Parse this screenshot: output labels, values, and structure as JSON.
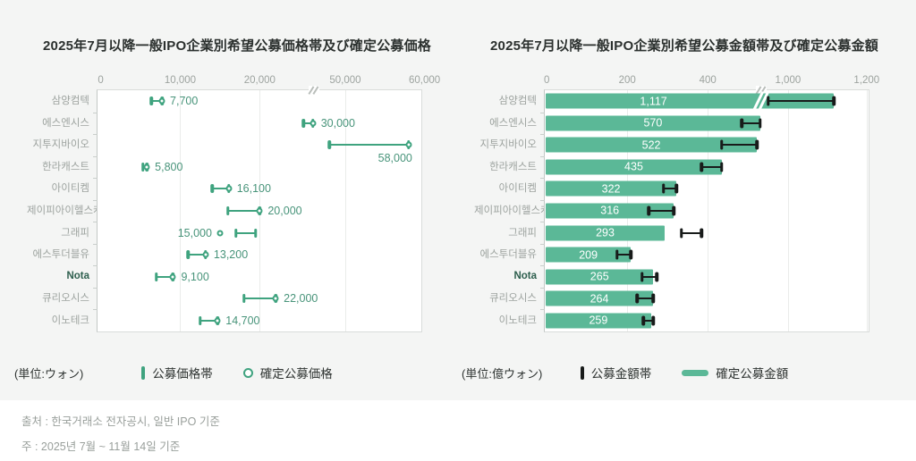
{
  "footer": {
    "source": "출처 : 한국거래소 전자공시, 일반 IPO 기준",
    "note": "주 : 2025년 7월 ~ 11월 14일 기준"
  },
  "colors": {
    "teal_bar": "#5bb897",
    "teal_marker": "#3fa37f",
    "value_label_teal": "#48947a",
    "band_black": "#181b1a",
    "highlight_dark_green": "#2e5f4e",
    "label_gray": "#9da39f"
  },
  "chart_data": [
    {
      "type": "range-dot",
      "title": "2025年7月以降一般IPO企業別希望公募価格帯及び確定公募価格",
      "unit": "(単位:ウォン)",
      "legend": [
        {
          "label": "公募価格帯",
          "icon": "teal-vertical-bar-icon"
        },
        {
          "label": "確定公募価格",
          "icon": "open-circle-icon"
        }
      ],
      "xlabel": "",
      "ylabel": "",
      "axis_break": true,
      "axis_break_between": [
        20000,
        50000
      ],
      "ticks": [
        {
          "v": 0,
          "label": "0"
        },
        {
          "v": 10000,
          "label": "10,000"
        },
        {
          "v": 20000,
          "label": "20,000"
        },
        {
          "v": 50000,
          "label": "50,000"
        },
        {
          "v": 60000,
          "label": "60,000"
        }
      ],
      "rows": [
        {
          "name": "삼양컴텍",
          "band": [
            6400,
            7700
          ],
          "confirmed": 7700,
          "label": "7,700",
          "label_pos": "right",
          "bold": false
        },
        {
          "name": "에스엔시스",
          "band": [
            25500,
            30000
          ],
          "confirmed": 30000,
          "label": "30,000",
          "label_pos": "right",
          "bold": false
        },
        {
          "name": "지투지바이오",
          "band": [
            48000,
            58000
          ],
          "confirmed": 58000,
          "label": "58,000",
          "label_pos": "below",
          "bold": false
        },
        {
          "name": "한라캐스트",
          "band": [
            5300,
            5800
          ],
          "confirmed": 5800,
          "label": "5,800",
          "label_pos": "right",
          "bold": false
        },
        {
          "name": "아이티켐",
          "band": [
            14000,
            16100
          ],
          "confirmed": 16100,
          "label": "16,100",
          "label_pos": "right",
          "bold": false
        },
        {
          "name": "제이피아이헬스케어",
          "band": [
            16000,
            20000
          ],
          "confirmed": 20000,
          "label": "20,000",
          "label_pos": "right",
          "bold": false
        },
        {
          "name": "그래피",
          "band": [
            17000,
            19500
          ],
          "confirmed": 15000,
          "label": "15,000",
          "label_pos": "left",
          "bold": false
        },
        {
          "name": "에스투더블유",
          "band": [
            11000,
            13200
          ],
          "confirmed": 13200,
          "label": "13,200",
          "label_pos": "right",
          "bold": false
        },
        {
          "name": "Nota",
          "band": [
            7000,
            9100
          ],
          "confirmed": 9100,
          "label": "9,100",
          "label_pos": "right",
          "bold": true
        },
        {
          "name": "큐리오시스",
          "band": [
            18000,
            22000
          ],
          "confirmed": 22000,
          "label": "22,000",
          "label_pos": "right",
          "bold": false
        },
        {
          "name": "이노테크",
          "band": [
            12500,
            14700
          ],
          "confirmed": 14700,
          "label": "14,700",
          "label_pos": "right",
          "bold": false
        }
      ]
    },
    {
      "type": "bar",
      "title": "2025年7月以降一般IPO企業別希望公募金額帯及び確定公募金額",
      "unit": "(単位:億ウォン)",
      "legend": [
        {
          "label": "公募金額帯",
          "icon": "black-vertical-bar-icon"
        },
        {
          "label": "確定公募金額",
          "icon": "teal-horizontal-bar-icon"
        }
      ],
      "xlabel": "",
      "ylabel": "",
      "axis_break": true,
      "axis_break_between": [
        400,
        1000
      ],
      "ticks": [
        {
          "v": 0,
          "label": "0"
        },
        {
          "v": 200,
          "label": "200"
        },
        {
          "v": 400,
          "label": "400"
        },
        {
          "v": 1000,
          "label": "1,000"
        },
        {
          "v": 1200,
          "label": "1,200"
        }
      ],
      "rows": [
        {
          "name": "삼양컴텍",
          "value": 1117,
          "band": [
            950,
            1117
          ],
          "label": "1,117",
          "bar_break": true,
          "bold": false
        },
        {
          "name": "에스엔시스",
          "value": 570,
          "band": [
            485,
            570
          ],
          "label": "570",
          "bar_break": false,
          "bold": false
        },
        {
          "name": "지투지바이오",
          "value": 522,
          "band": [
            435,
            522
          ],
          "label": "522",
          "bar_break": false,
          "bold": false
        },
        {
          "name": "한라캐스트",
          "value": 435,
          "band": [
            385,
            435
          ],
          "label": "435",
          "bar_break": false,
          "bold": false
        },
        {
          "name": "아이티켐",
          "value": 322,
          "band": [
            290,
            322
          ],
          "label": "322",
          "bar_break": false,
          "bold": false
        },
        {
          "name": "제이피아이헬스케어",
          "value": 316,
          "band": [
            253,
            316
          ],
          "label": "316",
          "bar_break": false,
          "bold": false
        },
        {
          "name": "그래피",
          "value": 293,
          "band": [
            335,
            385
          ],
          "label": "293",
          "bar_break": false,
          "bold": false
        },
        {
          "name": "에스투더블유",
          "value": 209,
          "band": [
            175,
            209
          ],
          "label": "209",
          "bar_break": false,
          "bold": false
        },
        {
          "name": "Nota",
          "value": 265,
          "band": [
            237,
            273
          ],
          "label": "265",
          "bar_break": false,
          "bold": true
        },
        {
          "name": "큐리오시스",
          "value": 264,
          "band": [
            225,
            265
          ],
          "label": "264",
          "bar_break": false,
          "bold": false
        },
        {
          "name": "이노테크",
          "value": 259,
          "band": [
            240,
            265
          ],
          "label": "259",
          "bar_break": false,
          "bold": false
        }
      ]
    }
  ]
}
